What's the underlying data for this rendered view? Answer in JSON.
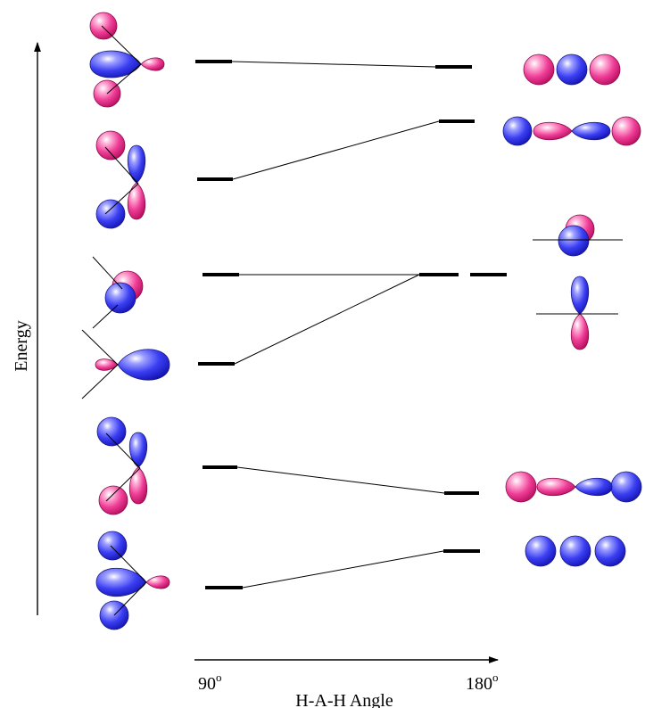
{
  "labels": {
    "y_axis": "Energy",
    "x_axis": "H-A-H Angle",
    "x_start": "90",
    "x_start_sup": "o",
    "x_end": "180",
    "x_end_sup": "o"
  },
  "colors": {
    "pink": "#ee3d96",
    "blue": "#3a3ef0",
    "line": "#000000"
  },
  "orbitals": [
    {
      "name": "orbital-6",
      "left_icon": "bent-3-center-antibonding",
      "right_icon": "linear-s-s-s-nodal"
    },
    {
      "name": "orbital-5",
      "left_icon": "bent-s-p-antibonding",
      "right_icon": "linear-s-p-antibonding"
    },
    {
      "name": "orbital-4",
      "left_icon": "bent-s-p-pi",
      "right_icon": "linear-pi-nonbonding"
    },
    {
      "name": "orbital-3",
      "left_icon": "bent-hybrid-nonbonding",
      "right_icon": "linear-pz-nonbonding"
    },
    {
      "name": "orbital-2",
      "left_icon": "bent-s-p-bonding",
      "right_icon": "linear-s-p-bonding"
    },
    {
      "name": "orbital-1",
      "left_icon": "bent-s-s-s-bonding",
      "right_icon": "linear-s-s-s-bonding"
    }
  ]
}
